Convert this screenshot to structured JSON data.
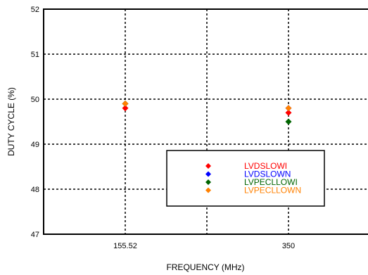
{
  "chart_data": {
    "type": "scatter",
    "title": "",
    "xlabel": "FREQUENCY (MHz)",
    "ylabel": "DUTY CYCLE (%)",
    "ylim": [
      47,
      52
    ],
    "yticks": [
      "47",
      "48",
      "49",
      "50",
      "51",
      "52"
    ],
    "categories": [
      "155.52",
      "350"
    ],
    "grid": true,
    "legend_position": "bottom-right",
    "series": [
      {
        "name": "LVDSLOWI",
        "color": "#ff0000",
        "values": [
          49.8,
          49.7
        ]
      },
      {
        "name": "LVDSLOWN",
        "color": "#0000ff",
        "values": [
          49.9,
          49.8
        ]
      },
      {
        "name": "LVPECLLOWI",
        "color": "#006400",
        "values": [
          49.9,
          49.5
        ]
      },
      {
        "name": "LVPECLLOWN",
        "color": "#ff8000",
        "values": [
          49.9,
          49.8
        ]
      }
    ]
  }
}
